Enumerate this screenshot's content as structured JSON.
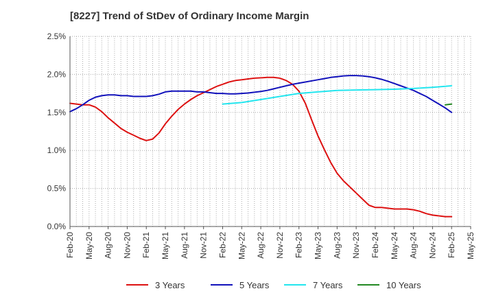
{
  "title": "[8227]  Trend of StDev of Ordinary Income Margin",
  "chart_data": {
    "type": "line",
    "title": "[8227]  Trend of StDev of Ordinary Income Margin",
    "xlabel": "",
    "ylabel": "",
    "ylim": [
      0,
      2.5
    ],
    "y_unit": "%",
    "yticks": [
      "0.0%",
      "0.5%",
      "1.0%",
      "1.5%",
      "2.0%",
      "2.5%"
    ],
    "x_ticks": [
      "Feb-20",
      "May-20",
      "Aug-20",
      "Nov-20",
      "Feb-21",
      "May-21",
      "Aug-21",
      "Nov-21",
      "Feb-22",
      "May-22",
      "Aug-22",
      "Nov-22",
      "Feb-23",
      "May-23",
      "Aug-23",
      "Nov-23",
      "Feb-24",
      "May-24",
      "Aug-24",
      "Nov-24",
      "Feb-25",
      "May-25"
    ],
    "grid": true,
    "legend_position": "bottom",
    "series": [
      {
        "name": "3 Years",
        "color": "#dd1111",
        "x": [
          "Feb-20",
          "Mar-20",
          "Apr-20",
          "May-20",
          "Jun-20",
          "Jul-20",
          "Aug-20",
          "Sep-20",
          "Oct-20",
          "Nov-20",
          "Dec-20",
          "Jan-21",
          "Feb-21",
          "Mar-21",
          "Apr-21",
          "May-21",
          "Jun-21",
          "Jul-21",
          "Aug-21",
          "Sep-21",
          "Oct-21",
          "Nov-21",
          "Dec-21",
          "Jan-22",
          "Feb-22",
          "Mar-22",
          "Apr-22",
          "May-22",
          "Jun-22",
          "Jul-22",
          "Aug-22",
          "Sep-22",
          "Oct-22",
          "Nov-22",
          "Dec-22",
          "Jan-23",
          "Feb-23",
          "Mar-23",
          "Apr-23",
          "May-23",
          "Jun-23",
          "Jul-23",
          "Aug-23",
          "Sep-23",
          "Oct-23",
          "Nov-23",
          "Dec-23",
          "Jan-24",
          "Feb-24",
          "Mar-24",
          "Apr-24",
          "May-24",
          "Jun-24",
          "Jul-24",
          "Aug-24",
          "Sep-24",
          "Oct-24",
          "Nov-24",
          "Dec-24",
          "Jan-25",
          "Feb-25"
        ],
        "values": [
          1.62,
          1.61,
          1.6,
          1.6,
          1.57,
          1.51,
          1.43,
          1.36,
          1.29,
          1.24,
          1.2,
          1.16,
          1.13,
          1.15,
          1.23,
          1.35,
          1.45,
          1.54,
          1.61,
          1.67,
          1.72,
          1.76,
          1.8,
          1.84,
          1.87,
          1.9,
          1.92,
          1.93,
          1.94,
          1.95,
          1.955,
          1.96,
          1.96,
          1.95,
          1.92,
          1.87,
          1.78,
          1.62,
          1.4,
          1.19,
          1.01,
          0.84,
          0.7,
          0.6,
          0.52,
          0.44,
          0.36,
          0.28,
          0.25,
          0.25,
          0.24,
          0.23,
          0.23,
          0.23,
          0.22,
          0.2,
          0.17,
          0.15,
          0.14,
          0.13,
          0.13
        ]
      },
      {
        "name": "5 Years",
        "color": "#1111bb",
        "x": [
          "Feb-20",
          "Mar-20",
          "Apr-20",
          "May-20",
          "Jun-20",
          "Jul-20",
          "Aug-20",
          "Sep-20",
          "Oct-20",
          "Nov-20",
          "Dec-20",
          "Jan-21",
          "Feb-21",
          "Mar-21",
          "Apr-21",
          "May-21",
          "Jun-21",
          "Jul-21",
          "Aug-21",
          "Sep-21",
          "Oct-21",
          "Nov-21",
          "Dec-21",
          "Jan-22",
          "Feb-22",
          "Mar-22",
          "Apr-22",
          "May-22",
          "Jun-22",
          "Jul-22",
          "Aug-22",
          "Sep-22",
          "Oct-22",
          "Nov-22",
          "Dec-22",
          "Jan-23",
          "Feb-23",
          "Mar-23",
          "Apr-23",
          "May-23",
          "Jun-23",
          "Jul-23",
          "Aug-23",
          "Sep-23",
          "Oct-23",
          "Nov-23",
          "Dec-23",
          "Jan-24",
          "Feb-24",
          "Mar-24",
          "Apr-24",
          "May-24",
          "Jun-24",
          "Jul-24",
          "Aug-24",
          "Sep-24",
          "Oct-24",
          "Nov-24",
          "Dec-24",
          "Jan-25",
          "Feb-25"
        ],
        "values": [
          1.51,
          1.55,
          1.6,
          1.66,
          1.7,
          1.72,
          1.73,
          1.73,
          1.72,
          1.72,
          1.71,
          1.71,
          1.71,
          1.72,
          1.74,
          1.77,
          1.78,
          1.78,
          1.78,
          1.78,
          1.77,
          1.77,
          1.76,
          1.75,
          1.75,
          1.745,
          1.745,
          1.75,
          1.755,
          1.765,
          1.775,
          1.79,
          1.81,
          1.83,
          1.85,
          1.87,
          1.885,
          1.9,
          1.915,
          1.93,
          1.945,
          1.96,
          1.97,
          1.98,
          1.985,
          1.985,
          1.98,
          1.97,
          1.955,
          1.935,
          1.91,
          1.88,
          1.85,
          1.82,
          1.79,
          1.75,
          1.71,
          1.66,
          1.61,
          1.56,
          1.5
        ]
      },
      {
        "name": "7 Years",
        "color": "#22e5ee",
        "x": [
          "Feb-22",
          "May-22",
          "Aug-22",
          "Nov-22",
          "Feb-23",
          "May-23",
          "Aug-23",
          "Nov-23",
          "Feb-24",
          "May-24",
          "Aug-24",
          "Nov-24",
          "Feb-25"
        ],
        "values": [
          1.61,
          1.63,
          1.67,
          1.71,
          1.75,
          1.77,
          1.79,
          1.795,
          1.8,
          1.805,
          1.815,
          1.83,
          1.85
        ]
      },
      {
        "name": "10 Years",
        "color": "#228822",
        "x": [
          "Jan-25",
          "Feb-25"
        ],
        "values": [
          1.6,
          1.61
        ]
      }
    ]
  }
}
